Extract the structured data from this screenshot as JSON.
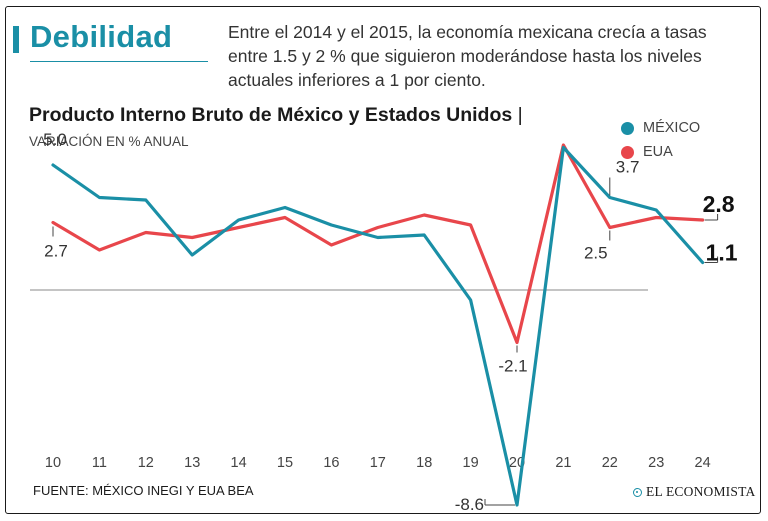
{
  "header": {
    "section_title": "Debilidad",
    "intro": "Entre el 2014 y el 2015, la economía mexicana crecía a tasas entre 1.5 y 2 % que siguieron moderándose hasta los niveles actuales inferiores a 1 por ciento."
  },
  "colors": {
    "accent": "#1a8fa6",
    "mexico": "#1a8fa6",
    "eua": "#e8464b",
    "zero_line": "#888888"
  },
  "source": "FUENTE: MÉXICO INEGI Y EUA BEA",
  "brand": "EL ECONOMISTA",
  "chart_data": {
    "type": "line",
    "title": "Producto Interno Bruto de México y Estados Unidos",
    "title_suffix": "|",
    "subtitle": "VARIACIÓN EN % ANUAL",
    "categories": [
      "10",
      "11",
      "12",
      "13",
      "14",
      "15",
      "16",
      "17",
      "18",
      "19",
      "20",
      "21",
      "22",
      "23",
      "24"
    ],
    "series": [
      {
        "name": "MÉXICO",
        "key": "mexico",
        "values": [
          5.0,
          3.7,
          3.6,
          1.4,
          2.8,
          3.3,
          2.6,
          2.1,
          2.2,
          -0.4,
          -8.6,
          5.7,
          3.7,
          3.2,
          1.1
        ]
      },
      {
        "name": "EUA",
        "key": "eua",
        "values": [
          2.7,
          1.6,
          2.3,
          2.1,
          2.5,
          2.9,
          1.8,
          2.5,
          3.0,
          2.6,
          -2.1,
          5.8,
          2.5,
          2.9,
          2.8
        ]
      }
    ],
    "ylim": [
      -9.5,
      6.5
    ],
    "annotations": [
      {
        "series": "mexico",
        "index": 0,
        "text": "5.0",
        "pos": "above"
      },
      {
        "series": "eua",
        "index": 0,
        "text": "2.7",
        "pos": "below"
      },
      {
        "series": "mexico",
        "index": 10,
        "text": "-8.6",
        "pos": "left"
      },
      {
        "series": "eua",
        "index": 10,
        "text": "-2.1",
        "pos": "below"
      },
      {
        "series": "mexico",
        "index": 12,
        "text": "3.7",
        "pos": "above"
      },
      {
        "series": "eua",
        "index": 12,
        "text": "2.5",
        "pos": "below"
      },
      {
        "series": "eua",
        "index": 14,
        "text": "2.8",
        "pos": "end-top"
      },
      {
        "series": "mexico",
        "index": 14,
        "text": "1.1",
        "pos": "end-bottom"
      }
    ]
  }
}
